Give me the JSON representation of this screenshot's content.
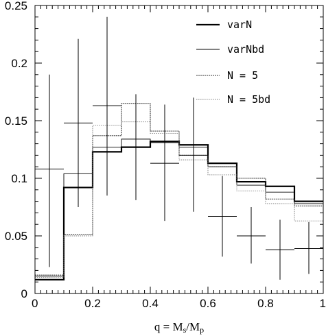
{
  "chart_data": {
    "type": "line",
    "xlim": [
      0,
      1
    ],
    "ylim": [
      0,
      0.25
    ],
    "xticks": [
      "0",
      "0.2",
      "0.4",
      "0.6",
      "0.8",
      "1"
    ],
    "yticks": [
      "0",
      "0.05",
      "0.1",
      "0.15",
      "0.2",
      "0.25"
    ],
    "xlabel": {
      "prefix": "q = M",
      "sub1": "s",
      "mid": "/M",
      "sub2": "p"
    },
    "bin_edges": [
      0,
      0.1,
      0.2,
      0.3,
      0.4,
      0.5,
      0.6,
      0.7,
      0.8,
      0.9,
      1.0
    ],
    "series": [
      {
        "name": "varN",
        "values": [
          0.012,
          0.092,
          0.123,
          0.127,
          0.132,
          0.129,
          0.113,
          0.097,
          0.093,
          0.08
        ]
      },
      {
        "name": "varNbd",
        "values": [
          0.015,
          0.104,
          0.127,
          0.134,
          0.131,
          0.127,
          0.11,
          0.094,
          0.088,
          0.078
        ]
      },
      {
        "name": "N = 5",
        "values": [
          0.016,
          0.051,
          0.137,
          0.165,
          0.141,
          0.12,
          0.11,
          0.1,
          0.082,
          0.076
        ]
      },
      {
        "name": "N = 5bd",
        "values": [
          0.014,
          0.05,
          0.146,
          0.149,
          0.139,
          0.116,
          0.103,
          0.089,
          0.078,
          0.063
        ]
      }
    ],
    "observed": {
      "x": [
        0.05,
        0.15,
        0.25,
        0.35,
        0.45,
        0.55,
        0.65,
        0.75,
        0.85,
        0.95
      ],
      "y": [
        0.108,
        0.148,
        0.163,
        0.127,
        0.113,
        0.12,
        0.067,
        0.05,
        0.038,
        0.039
      ],
      "yerr_low": [
        0.023,
        0.075,
        0.085,
        0.081,
        0.063,
        0.071,
        0.032,
        0.026,
        0.012,
        0.017
      ],
      "yerr_high": [
        0.19,
        0.221,
        0.24,
        0.173,
        0.164,
        0.17,
        0.102,
        0.075,
        0.064,
        0.062
      ]
    },
    "legend_position": "top-right",
    "grid": false
  }
}
